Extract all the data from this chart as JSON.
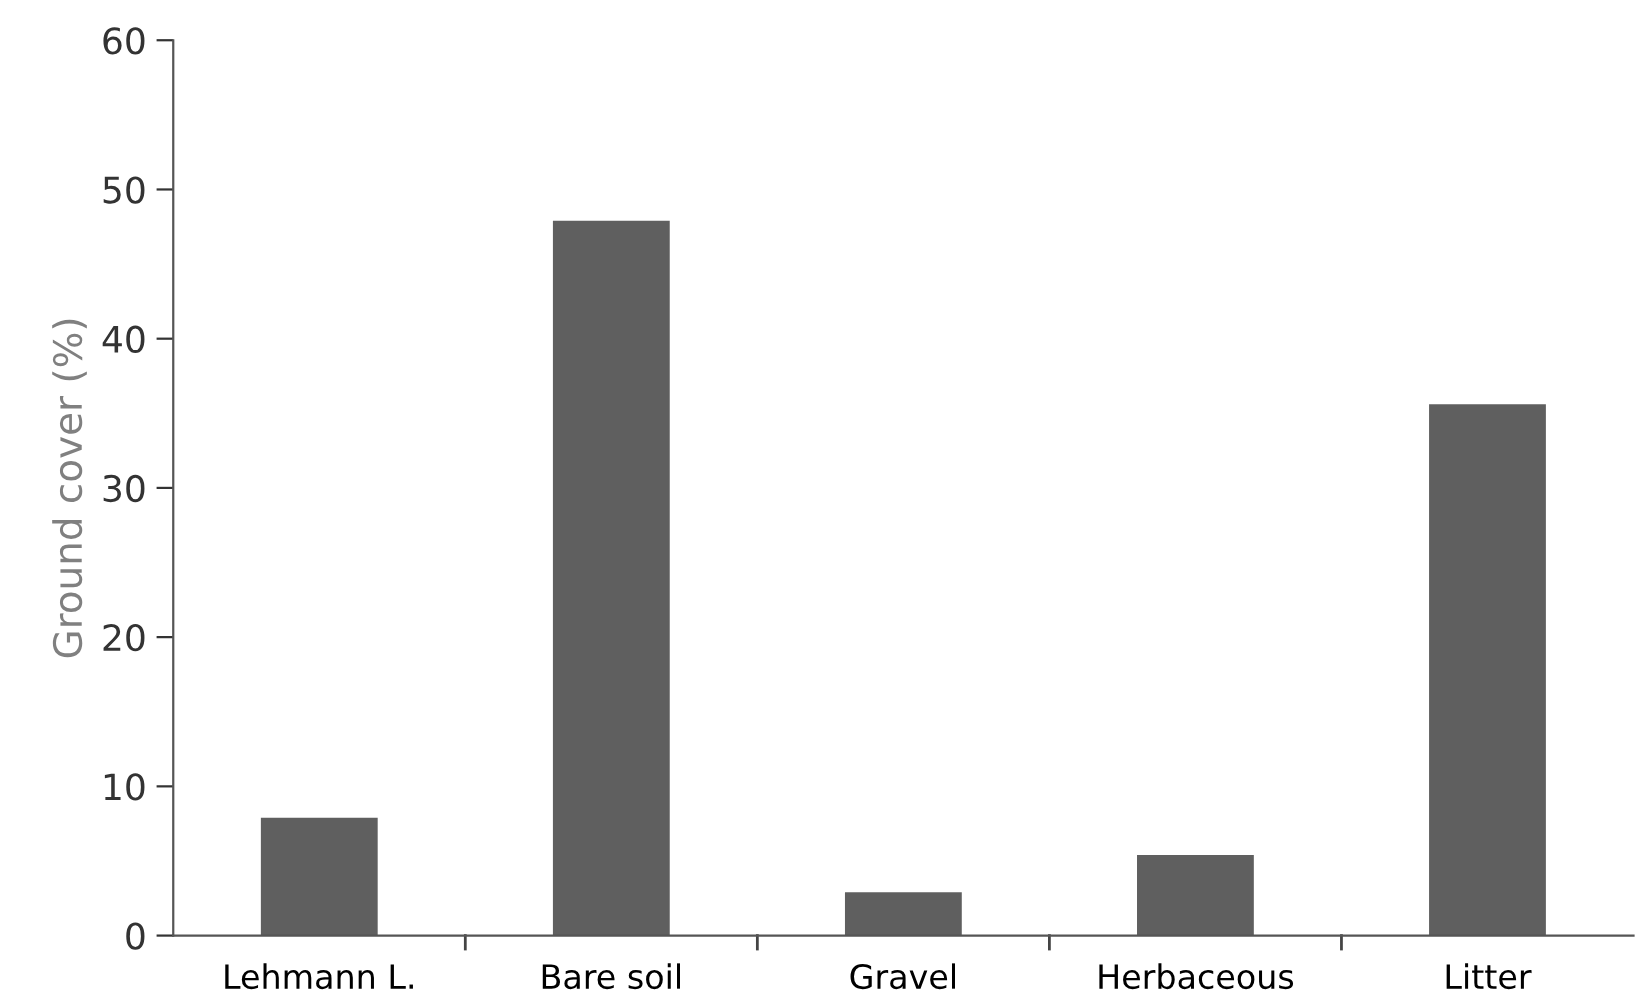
{
  "chart_data": {
    "type": "bar",
    "ylabel": "Ground cover (%)",
    "categories": [
      "Lehmann L.",
      "Bare soil",
      "Gravel",
      "Herbaceous",
      "Litter"
    ],
    "values": [
      7.9,
      47.9,
      2.9,
      5.4,
      35.6
    ],
    "color": "#5f5f5f",
    "ylim": [
      0,
      60
    ],
    "yticks": [
      0,
      10,
      20,
      30,
      40,
      50,
      60
    ],
    "grid": false
  }
}
